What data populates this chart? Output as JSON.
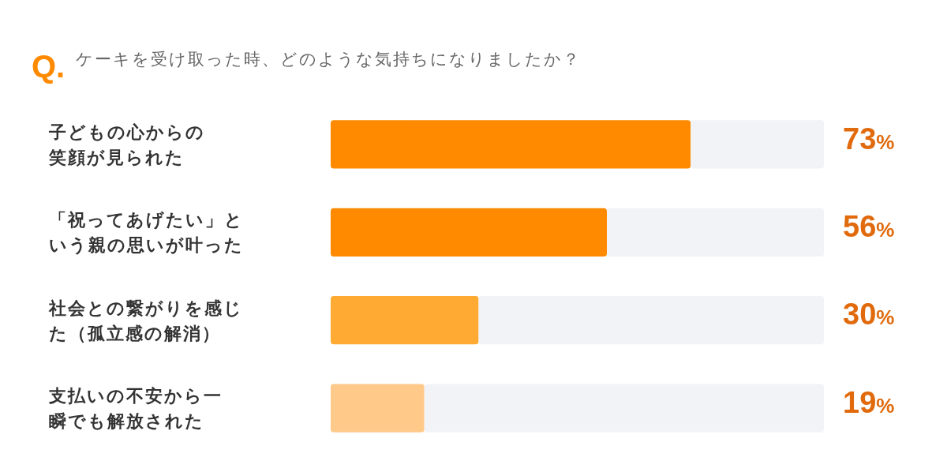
{
  "chart_data": {
    "type": "bar",
    "orientation": "horizontal",
    "stacked": true,
    "title": "ケーキを受け取った時、どのような気持ちになりましたか？",
    "annotations": [
      "Q."
    ],
    "categories": [
      "子どもの心からの笑顔が見られた",
      "「祝ってあげたい」という親の思いが叶った",
      "社会との繋がりを感じた（孤立感の解消）",
      "支払いの不安から一瞬でも解放された"
    ],
    "series": [
      {
        "colors": [
          "#ff8a00",
          "#ff8a00",
          "#ffaa33",
          "#ffc98a"
        ],
        "values": [
          73,
          56,
          30,
          19
        ],
        "value_labels": [
          "73%",
          "56%",
          "30%",
          "19%"
        ]
      },
      {
        "color": "#f1f3f7",
        "values": [
          27,
          44,
          70,
          81
        ]
      }
    ],
    "xlim": [
      0,
      100
    ]
  }
}
